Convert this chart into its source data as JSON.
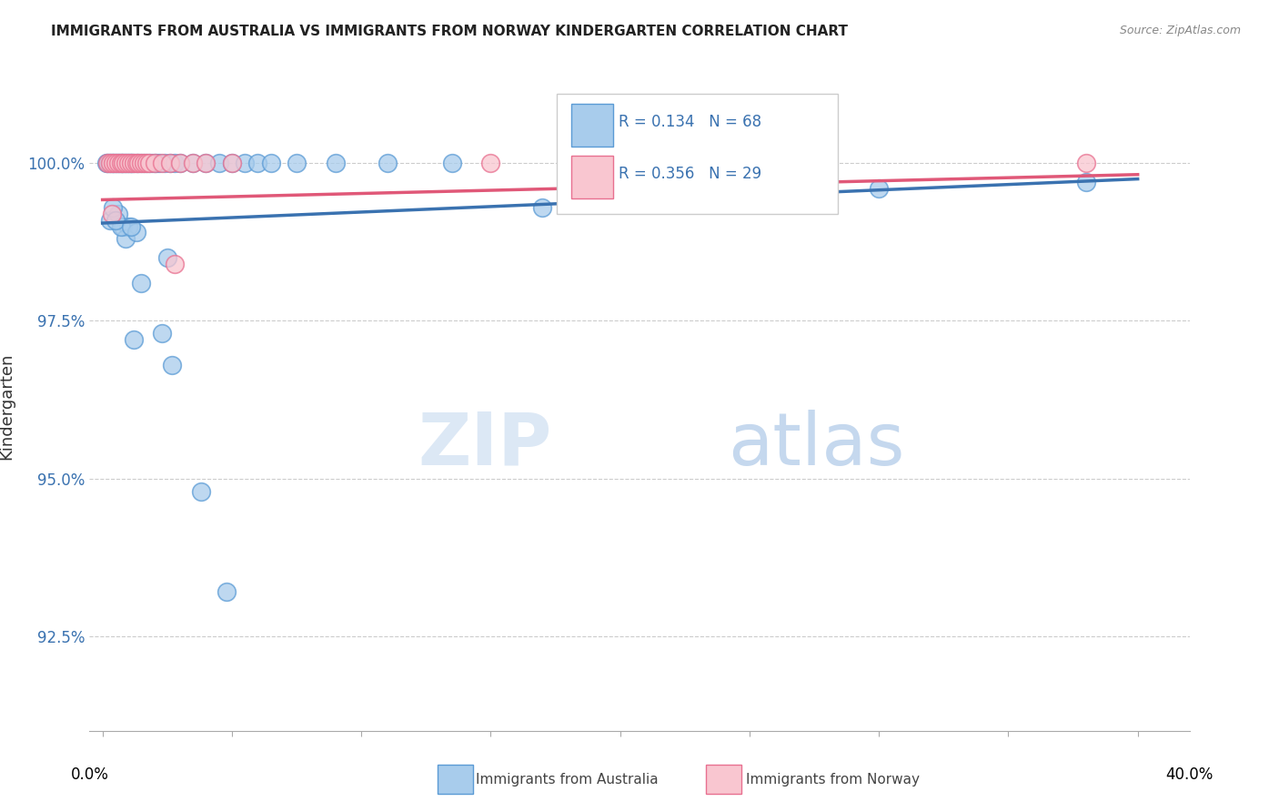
{
  "title": "IMMIGRANTS FROM AUSTRALIA VS IMMIGRANTS FROM NORWAY KINDERGARTEN CORRELATION CHART",
  "source": "Source: ZipAtlas.com",
  "ylabel": "Kindergarten",
  "yticks": [
    92.5,
    95.0,
    97.5,
    100.0
  ],
  "ytick_labels": [
    "92.5%",
    "95.0%",
    "97.5%",
    "100.0%"
  ],
  "xlim": [
    -0.5,
    42.0
  ],
  "ylim": [
    91.0,
    101.3
  ],
  "legend_R_australia": "R = 0.134",
  "legend_N_australia": "N = 68",
  "legend_R_norway": "R = 0.356",
  "legend_N_norway": "N = 29",
  "color_australia_face": "#A8CCEC",
  "color_australia_edge": "#5B9BD5",
  "color_norway_face": "#F9C6D0",
  "color_norway_edge": "#E87090",
  "color_australia_line": "#3A72B0",
  "color_norway_line": "#E05878",
  "aus_trend_x": [
    0,
    40
  ],
  "aus_trend_y": [
    99.05,
    99.75
  ],
  "nor_trend_x": [
    0,
    40
  ],
  "nor_trend_y": [
    99.42,
    99.82
  ],
  "australia_x": [
    0.15,
    0.2,
    0.25,
    0.3,
    0.35,
    0.4,
    0.45,
    0.5,
    0.55,
    0.6,
    0.65,
    0.7,
    0.75,
    0.8,
    0.85,
    0.9,
    0.95,
    1.0,
    1.05,
    1.1,
    1.15,
    1.2,
    1.3,
    1.4,
    1.5,
    1.6,
    1.7,
    1.8,
    1.9,
    2.0,
    2.1,
    2.2,
    2.4,
    2.6,
    2.8,
    3.0,
    3.5,
    4.0,
    4.5,
    5.0,
    5.5,
    6.0,
    6.5,
    7.5,
    9.0,
    11.0,
    13.5,
    17.0,
    22.0,
    30.0,
    38.0,
    1.2,
    2.3,
    2.7,
    3.8,
    4.8,
    1.5,
    2.5,
    0.3,
    0.8,
    1.0,
    0.6,
    0.9,
    0.4,
    0.7,
    0.5,
    1.3,
    1.1
  ],
  "australia_y": [
    100.0,
    100.0,
    100.0,
    100.0,
    100.0,
    100.0,
    100.0,
    100.0,
    100.0,
    100.0,
    100.0,
    100.0,
    100.0,
    100.0,
    100.0,
    100.0,
    100.0,
    100.0,
    100.0,
    100.0,
    100.0,
    100.0,
    100.0,
    100.0,
    100.0,
    100.0,
    100.0,
    100.0,
    100.0,
    100.0,
    100.0,
    100.0,
    100.0,
    100.0,
    100.0,
    100.0,
    100.0,
    100.0,
    100.0,
    100.0,
    100.0,
    100.0,
    100.0,
    100.0,
    100.0,
    100.0,
    100.0,
    99.3,
    99.5,
    99.6,
    99.7,
    97.2,
    97.3,
    96.8,
    94.8,
    93.2,
    98.1,
    98.5,
    99.1,
    99.0,
    99.0,
    99.2,
    98.8,
    99.3,
    99.0,
    99.1,
    98.9,
    99.0
  ],
  "norway_x": [
    0.2,
    0.3,
    0.4,
    0.5,
    0.6,
    0.7,
    0.8,
    0.9,
    1.0,
    1.1,
    1.2,
    1.3,
    1.4,
    1.5,
    1.6,
    1.7,
    1.8,
    2.0,
    2.3,
    2.6,
    3.0,
    3.5,
    4.0,
    5.0,
    15.0,
    28.0,
    38.0,
    2.8,
    0.35
  ],
  "norway_y": [
    100.0,
    100.0,
    100.0,
    100.0,
    100.0,
    100.0,
    100.0,
    100.0,
    100.0,
    100.0,
    100.0,
    100.0,
    100.0,
    100.0,
    100.0,
    100.0,
    100.0,
    100.0,
    100.0,
    100.0,
    100.0,
    100.0,
    100.0,
    100.0,
    100.0,
    100.0,
    100.0,
    98.4,
    99.2
  ]
}
